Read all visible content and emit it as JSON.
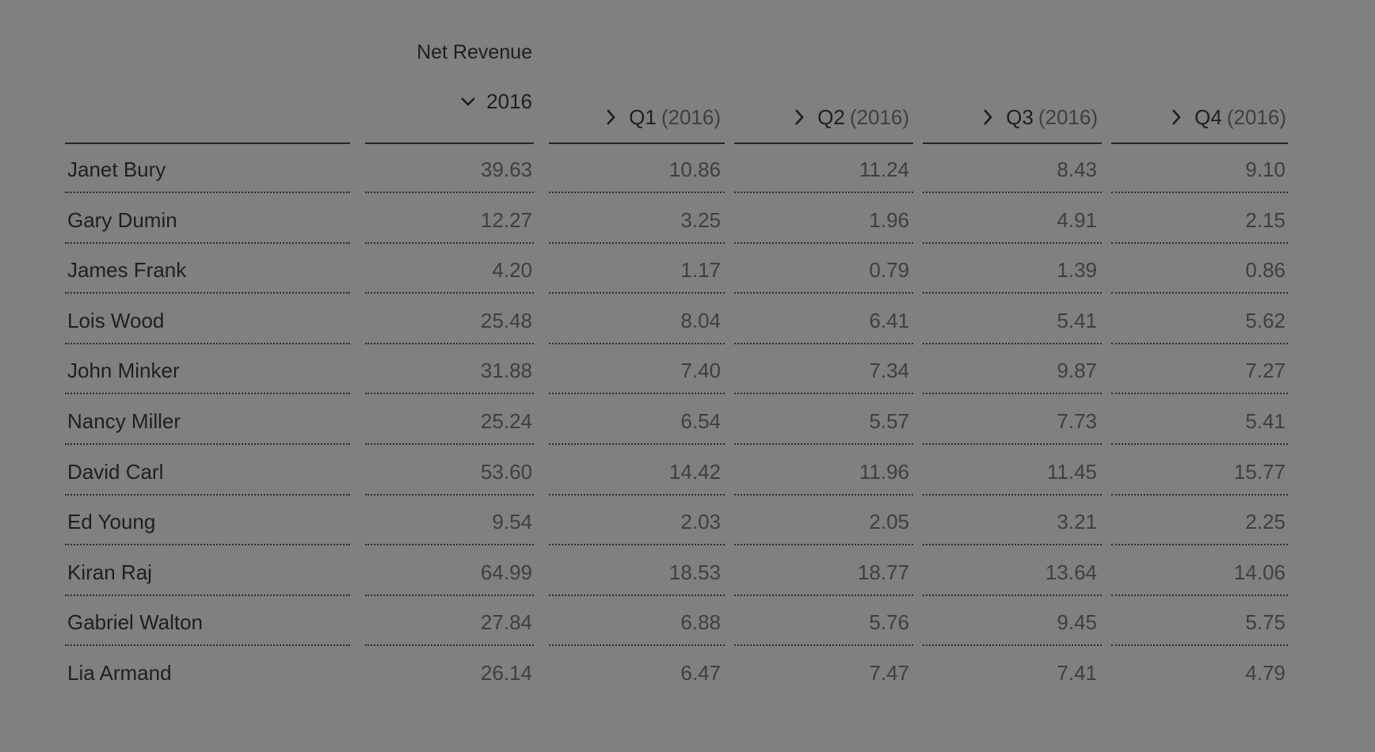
{
  "table": {
    "measure_title": "Net Revenue",
    "year_header": {
      "label": "2016",
      "icon": "chevron-down-icon"
    },
    "quarter_headers": [
      {
        "label": "Q1",
        "year": "(2016)",
        "icon": "chevron-right-icon"
      },
      {
        "label": "Q2",
        "year": "(2016)",
        "icon": "chevron-right-icon"
      },
      {
        "label": "Q3",
        "year": "(2016)",
        "icon": "chevron-right-icon"
      },
      {
        "label": "Q4",
        "year": "(2016)",
        "icon": "chevron-right-icon"
      }
    ],
    "rows": [
      {
        "name": "Janet Bury",
        "total": "39.63",
        "q1": "10.86",
        "q2": "11.24",
        "q3": "8.43",
        "q4": "9.10"
      },
      {
        "name": "Gary Dumin",
        "total": "12.27",
        "q1": "3.25",
        "q2": "1.96",
        "q3": "4.91",
        "q4": "2.15"
      },
      {
        "name": "James Frank",
        "total": "4.20",
        "q1": "1.17",
        "q2": "0.79",
        "q3": "1.39",
        "q4": "0.86"
      },
      {
        "name": "Lois Wood",
        "total": "25.48",
        "q1": "8.04",
        "q2": "6.41",
        "q3": "5.41",
        "q4": "5.62"
      },
      {
        "name": "John Minker",
        "total": "31.88",
        "q1": "7.40",
        "q2": "7.34",
        "q3": "9.87",
        "q4": "7.27"
      },
      {
        "name": "Nancy Miller",
        "total": "25.24",
        "q1": "6.54",
        "q2": "5.57",
        "q3": "7.73",
        "q4": "5.41"
      },
      {
        "name": "David Carl",
        "total": "53.60",
        "q1": "14.42",
        "q2": "11.96",
        "q3": "11.45",
        "q4": "15.77"
      },
      {
        "name": "Ed Young",
        "total": "9.54",
        "q1": "2.03",
        "q2": "2.05",
        "q3": "3.21",
        "q4": "2.25"
      },
      {
        "name": "Kiran Raj",
        "total": "64.99",
        "q1": "18.53",
        "q2": "18.77",
        "q3": "13.64",
        "q4": "14.06"
      },
      {
        "name": "Gabriel Walton",
        "total": "27.84",
        "q1": "6.88",
        "q2": "5.76",
        "q3": "9.45",
        "q4": "5.75"
      },
      {
        "name": "Lia Armand",
        "total": "26.14",
        "q1": "6.47",
        "q2": "7.47",
        "q3": "7.41",
        "q4": "4.79"
      }
    ]
  },
  "colors": {
    "backdrop": "#808080",
    "text_primary": "#1f1f1f",
    "text_values": "#3f3f3f"
  }
}
